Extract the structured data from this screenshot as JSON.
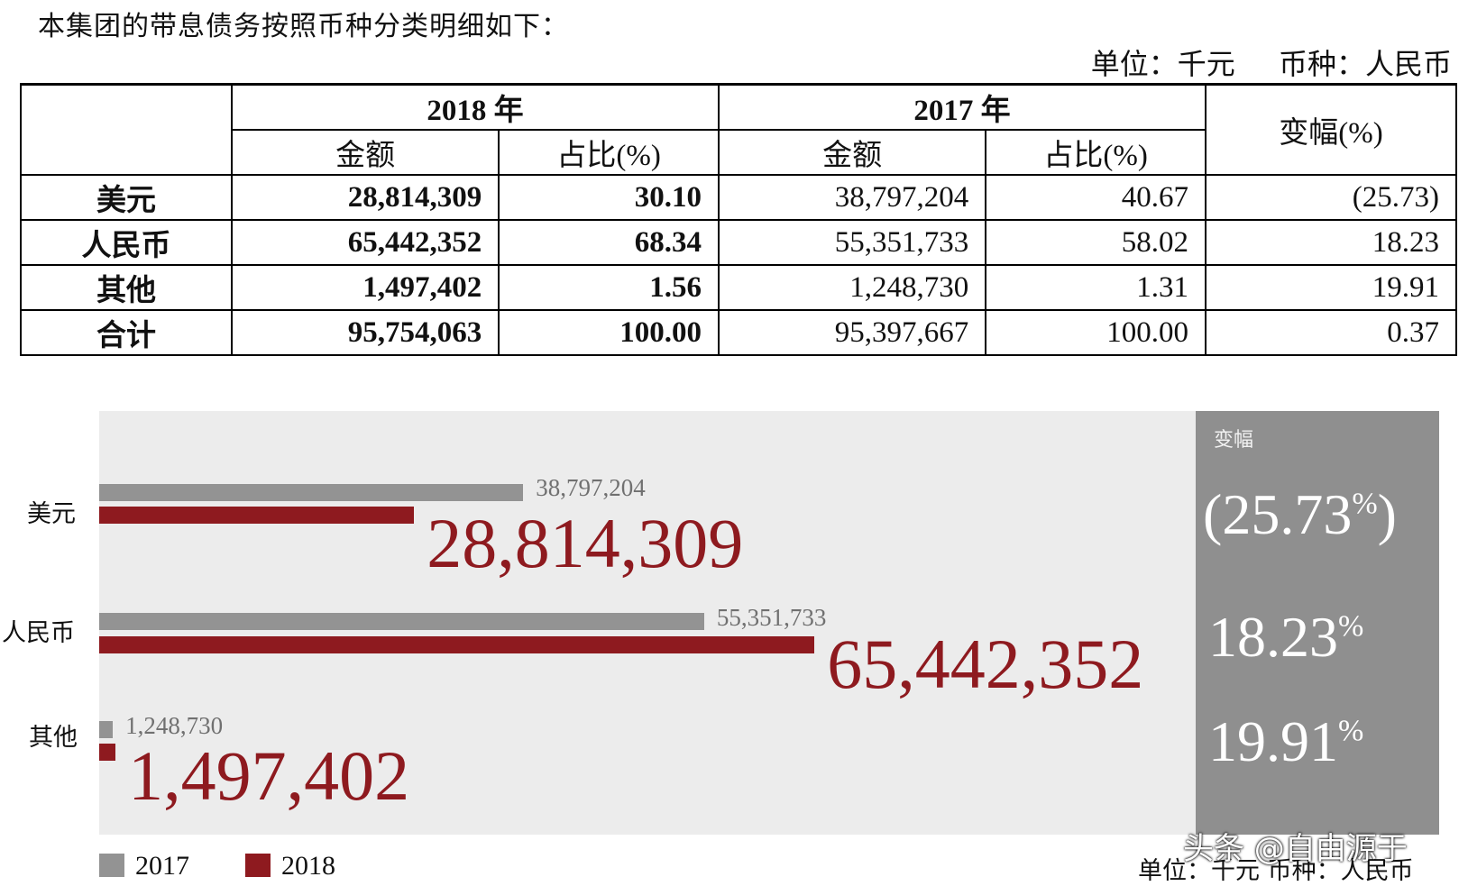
{
  "intro_text": "本集团的带息债务按照币种分类明细如下：",
  "unit_text": "单位：千元",
  "currency_text": "币种：人民币",
  "table": {
    "year_2018": "2018 年",
    "year_2017": "2017 年",
    "amount_header": "金额",
    "ratio_header": "占比(%)",
    "change_header": "变幅(%)",
    "rows": [
      {
        "label": "美元",
        "amt2018": "28,814,309",
        "pct2018": "30.10",
        "amt2017": "38,797,204",
        "pct2017": "40.67",
        "change": "(25.73)"
      },
      {
        "label": "人民币",
        "amt2018": "65,442,352",
        "pct2018": "68.34",
        "amt2017": "55,351,733",
        "pct2017": "58.02",
        "change": "18.23"
      },
      {
        "label": "其他",
        "amt2018": "1,497,402",
        "pct2018": "1.56",
        "amt2017": "1,248,730",
        "pct2017": "1.31",
        "change": "19.91"
      },
      {
        "label": "合计",
        "amt2018": "95,754,063",
        "pct2018": "100.00",
        "amt2017": "95,397,667",
        "pct2017": "100.00",
        "change": "0.37"
      }
    ]
  },
  "infographic": {
    "change_title": "变幅",
    "categories": [
      {
        "label": "美元",
        "v2017": 38797204,
        "v2018": 28814309,
        "label2017": "38,797,204",
        "label2018": "28,814,309",
        "change_display": "(25.73%)",
        "change_main": "(25.73",
        "change_pct": "%",
        "change_close": ")"
      },
      {
        "label": "人民币",
        "v2017": 55351733,
        "v2018": 65442352,
        "label2017": "55,351,733",
        "label2018": "65,442,352",
        "change_display": "18.23%",
        "change_main": "18.23",
        "change_pct": "%",
        "change_close": ""
      },
      {
        "label": "其他",
        "v2017": 1248730,
        "v2018": 1497402,
        "label2017": "1,248,730",
        "label2018": "1,497,402",
        "change_display": "19.91%",
        "change_main": "19.91",
        "change_pct": "%",
        "change_close": ""
      }
    ],
    "legend": [
      {
        "name": "2017",
        "color": "#939393"
      },
      {
        "name": "2018",
        "color": "#8e1a1f"
      }
    ],
    "footer_unit": "单位：千元  币种：人民币",
    "watermark": "头条 @自由源于"
  }
}
